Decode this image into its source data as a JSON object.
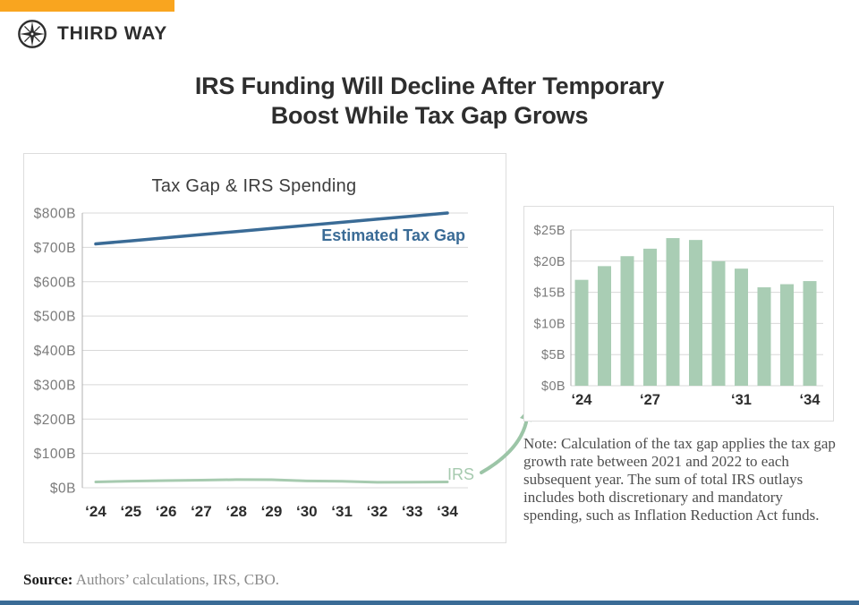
{
  "brand": {
    "logo_icon": "compass-icon",
    "name": "THIRD WAY",
    "accent_color": "#F9A51F"
  },
  "title": {
    "line1": "IRS Funding Will Decline After Temporary",
    "line2": "Boost While Tax Gap Grows"
  },
  "chart_data": [
    {
      "type": "line",
      "title": "Tax Gap & IRS Spending",
      "x": [
        "‘24",
        "‘25",
        "‘26",
        "‘27",
        "‘28",
        "‘29",
        "‘30",
        "‘31",
        "‘32",
        "‘33",
        "‘34"
      ],
      "ylim": [
        0,
        800
      ],
      "ytick_step": 100,
      "yticks": [
        "$0B",
        "$100B",
        "$200B",
        "$300B",
        "$400B",
        "$500B",
        "$600B",
        "$700B",
        "$800B"
      ],
      "grid": true,
      "legend": "inline-labels",
      "series": [
        {
          "name": "Estimated Tax Gap",
          "color": "#3A6B96",
          "values": [
            710,
            719,
            728,
            737,
            746,
            755,
            764,
            773,
            782,
            791,
            800
          ]
        },
        {
          "name": "IRS",
          "color": "#A6CAAF",
          "values": [
            17,
            19.2,
            20.8,
            22,
            23.7,
            23.4,
            20,
            18.8,
            15.8,
            16.3,
            16.8
          ]
        }
      ]
    },
    {
      "type": "bar",
      "categories": [
        "‘24",
        "‘25",
        "‘26",
        "‘27",
        "‘28",
        "‘29",
        "‘30",
        "‘31",
        "‘32",
        "‘33",
        "‘34"
      ],
      "values": [
        17,
        19.2,
        20.8,
        22,
        23.7,
        23.4,
        20,
        18.8,
        15.8,
        16.3,
        16.8
      ],
      "bar_color": "#A9CDB4",
      "ylim": [
        0,
        25
      ],
      "ytick_step": 5,
      "yticks": [
        "$0B",
        "$5B",
        "$10B",
        "$15B",
        "$20B",
        "$25B"
      ],
      "xticks_shown": [
        "‘24",
        "‘27",
        "‘31",
        "‘34"
      ],
      "xtick_indices": [
        0,
        3,
        7,
        10
      ],
      "grid": true
    }
  ],
  "annotations": {
    "arrow_color": "#9CC5A7"
  },
  "note": {
    "text": "Note: Calculation of the tax gap applies the tax gap growth rate between 2021 and 2022 to each subsequent year. The sum of total IRS outlays includes both discretionary and mandatory spending, such as Inflation Reduction Act funds."
  },
  "source": {
    "label": "Source:",
    "text": "Authors’ calculations, IRS, CBO."
  },
  "footer": {
    "bar_color": "#3A6B96"
  }
}
